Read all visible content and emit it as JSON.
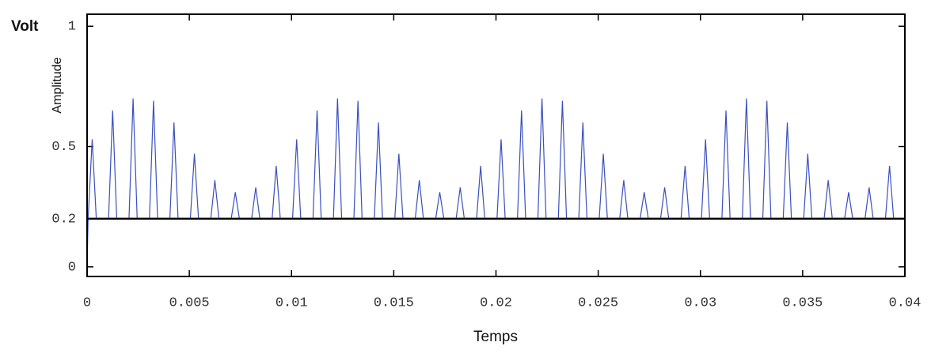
{
  "chart_data": {
    "type": "line",
    "title": "Volt",
    "y_label": "Amplitude",
    "x_label": "Temps",
    "xlim": [
      0,
      0.04
    ],
    "ylim": [
      -0.04,
      1.05
    ],
    "xticks": [
      0,
      0.005,
      0.01,
      0.015,
      0.02,
      0.025,
      0.03,
      0.035,
      0.04
    ],
    "yticks": [
      0,
      0.2,
      0.5,
      1
    ],
    "hline": 0.2,
    "x": [
      0,
      5e-05,
      0.00025,
      0.00045,
      0.00105,
      0.00125,
      0.00145,
      0.00205,
      0.00225,
      0.00245,
      0.00305,
      0.00325,
      0.00345,
      0.00405,
      0.00425,
      0.00445,
      0.00505,
      0.00525,
      0.00545,
      0.00605,
      0.00625,
      0.00645,
      0.00705,
      0.00725,
      0.00745,
      0.00805,
      0.00825,
      0.00845,
      0.00905,
      0.00925,
      0.00945,
      0.01005,
      0.01025,
      0.01045,
      0.01105,
      0.01125,
      0.01145,
      0.01205,
      0.01225,
      0.01245,
      0.01305,
      0.01325,
      0.01345,
      0.01405,
      0.01425,
      0.01445,
      0.01505,
      0.01525,
      0.01545,
      0.01605,
      0.01625,
      0.01645,
      0.01705,
      0.01725,
      0.01745,
      0.01805,
      0.01825,
      0.01845,
      0.01905,
      0.01925,
      0.01945,
      0.02005,
      0.02025,
      0.02045,
      0.02105,
      0.02125,
      0.02145,
      0.02205,
      0.02225,
      0.02245,
      0.02305,
      0.02325,
      0.02345,
      0.02405,
      0.02425,
      0.02445,
      0.02505,
      0.02525,
      0.02545,
      0.02605,
      0.02625,
      0.02645,
      0.02705,
      0.02725,
      0.02745,
      0.02805,
      0.02825,
      0.02845,
      0.02905,
      0.02925,
      0.02945,
      0.03005,
      0.03025,
      0.03045,
      0.03105,
      0.03125,
      0.03145,
      0.03205,
      0.03225,
      0.03245,
      0.03305,
      0.03325,
      0.03345,
      0.03405,
      0.03425,
      0.03445,
      0.03505,
      0.03525,
      0.03545,
      0.03605,
      0.03625,
      0.03645,
      0.03705,
      0.03725,
      0.03745,
      0.03805,
      0.03825,
      0.03845,
      0.03905,
      0.03925,
      0.03945
    ],
    "series": [
      {
        "color": "#3a4fc0",
        "values": [
          0,
          0.2,
          0.53,
          0.2,
          0.2,
          0.65,
          0.2,
          0.2,
          0.7,
          0.2,
          0.2,
          0.69,
          0.2,
          0.2,
          0.6,
          0.2,
          0.2,
          0.47,
          0.2,
          0.2,
          0.36,
          0.2,
          0.2,
          0.31,
          0.2,
          0.2,
          0.33,
          0.2,
          0.2,
          0.42,
          0.2,
          0.2,
          0.53,
          0.2,
          0.2,
          0.65,
          0.2,
          0.2,
          0.7,
          0.2,
          0.2,
          0.69,
          0.2,
          0.2,
          0.6,
          0.2,
          0.2,
          0.47,
          0.2,
          0.2,
          0.36,
          0.2,
          0.2,
          0.31,
          0.2,
          0.2,
          0.33,
          0.2,
          0.2,
          0.42,
          0.2,
          0.2,
          0.53,
          0.2,
          0.2,
          0.65,
          0.2,
          0.2,
          0.7,
          0.2,
          0.2,
          0.69,
          0.2,
          0.2,
          0.6,
          0.2,
          0.2,
          0.47,
          0.2,
          0.2,
          0.36,
          0.2,
          0.2,
          0.31,
          0.2,
          0.2,
          0.33,
          0.2,
          0.2,
          0.42,
          0.2,
          0.2,
          0.53,
          0.2,
          0.2,
          0.65,
          0.2,
          0.2,
          0.7,
          0.2,
          0.2,
          0.69,
          0.2,
          0.2,
          0.6,
          0.2,
          0.2,
          0.47,
          0.2,
          0.2,
          0.36,
          0.2,
          0.2,
          0.31,
          0.2,
          0.2,
          0.33,
          0.2,
          0.2,
          0.42,
          0.2
        ]
      }
    ]
  }
}
